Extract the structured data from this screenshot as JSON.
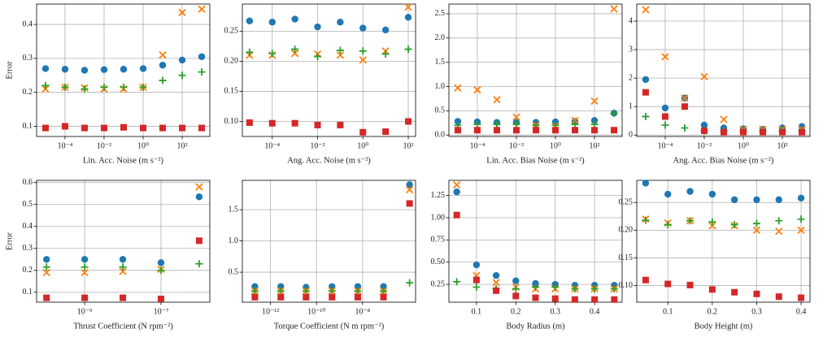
{
  "chart_data": [
    {
      "type": "scatter",
      "xlabel": "Lin. Acc. Noise (m s⁻²)",
      "ylabel": "Error",
      "log_x": true,
      "grid": true,
      "x": [
        1e-05,
        0.0001,
        0.001,
        0.01,
        0.1,
        1,
        10,
        100,
        1000
      ],
      "xlim": [
        3.5e-06,
        2600
      ],
      "ylim": [
        0.07,
        0.46
      ],
      "xticks": [
        {
          "value": 0.0001,
          "label": "10⁻⁴"
        },
        {
          "value": 0.01,
          "label": "10⁻²"
        },
        {
          "value": 1,
          "label": "10⁰"
        },
        {
          "value": 100,
          "label": "10²"
        }
      ],
      "yticks": [
        0.1,
        0.2,
        0.3,
        0.4
      ],
      "series": [
        {
          "color": "#1f77b4",
          "marker": "o",
          "values": [
            0.27,
            0.268,
            0.265,
            0.267,
            0.268,
            0.27,
            0.28,
            0.295,
            0.305
          ]
        },
        {
          "color": "#ff7f0e",
          "marker": "x",
          "values": [
            0.21,
            0.215,
            0.213,
            0.21,
            0.21,
            0.215,
            0.31,
            0.435,
            0.445
          ]
        },
        {
          "color": "#2ca02c",
          "marker": "+",
          "values": [
            0.22,
            0.215,
            0.21,
            0.215,
            0.215,
            0.215,
            0.235,
            0.25,
            0.26
          ]
        },
        {
          "color": "#d62728",
          "marker": "s",
          "values": [
            0.095,
            0.1,
            0.095,
            0.095,
            0.097,
            0.095,
            0.095,
            0.095,
            0.095
          ]
        }
      ]
    },
    {
      "type": "scatter",
      "xlabel": "Ang. Acc. Noise (m s⁻²)",
      "log_x": true,
      "grid": true,
      "x": [
        1e-05,
        0.0001,
        0.001,
        0.01,
        0.1,
        1,
        10,
        100
      ],
      "xlim": [
        4.8e-06,
        210
      ],
      "ylim": [
        0.075,
        0.295
      ],
      "xticks": [
        {
          "value": 0.0001,
          "label": "10⁻⁴"
        },
        {
          "value": 0.01,
          "label": "10⁻²"
        },
        {
          "value": 1,
          "label": "10⁰"
        },
        {
          "value": 100,
          "label": "10²"
        }
      ],
      "yticks": [
        {
          "value": 0.1,
          "label": "0.10"
        },
        {
          "value": 0.15,
          "label": "0.15"
        },
        {
          "value": 0.2,
          "label": "0.20"
        },
        {
          "value": 0.25,
          "label": "0.25"
        }
      ],
      "series": [
        {
          "color": "#1f77b4",
          "marker": "o",
          "values": [
            0.267,
            0.265,
            0.27,
            0.257,
            0.265,
            0.255,
            0.252,
            0.273
          ]
        },
        {
          "color": "#ff7f0e",
          "marker": "x",
          "values": [
            0.21,
            0.21,
            0.213,
            0.212,
            0.21,
            0.202,
            0.217,
            0.29
          ]
        },
        {
          "color": "#2ca02c",
          "marker": "+",
          "values": [
            0.215,
            0.213,
            0.22,
            0.208,
            0.218,
            0.217,
            0.212,
            0.22
          ]
        },
        {
          "color": "#d62728",
          "marker": "s",
          "values": [
            0.098,
            0.097,
            0.097,
            0.094,
            0.094,
            0.082,
            0.083,
            0.1
          ]
        }
      ]
    },
    {
      "type": "scatter",
      "xlabel": "Lin. Acc. Bias Noise (m s⁻²)",
      "log_x": true,
      "grid": true,
      "x": [
        1e-05,
        0.0001,
        0.001,
        0.01,
        0.1,
        1,
        10,
        100,
        1000
      ],
      "xlim": [
        3.5e-06,
        2600
      ],
      "ylim": [
        -0.03,
        2.7
      ],
      "xticks": [
        {
          "value": 0.0001,
          "label": "10⁻⁴"
        },
        {
          "value": 0.01,
          "label": "10⁻²"
        },
        {
          "value": 1,
          "label": "10⁰"
        },
        {
          "value": 100,
          "label": "10²"
        }
      ],
      "yticks": [
        {
          "value": 0,
          "label": "0.0"
        },
        0.5,
        {
          "value": 1,
          "label": "1.0"
        },
        1.5,
        {
          "value": 2,
          "label": "2.0"
        },
        2.5
      ],
      "series": [
        {
          "color": "#1f77b4",
          "marker": "o",
          "values": [
            0.28,
            0.27,
            0.26,
            0.26,
            0.26,
            0.27,
            0.28,
            0.3,
            0.45
          ]
        },
        {
          "color": "#ff7f0e",
          "marker": "x",
          "values": [
            0.97,
            0.93,
            0.73,
            0.37,
            0.2,
            0.18,
            0.3,
            0.7,
            2.6
          ]
        },
        {
          "color": "#2ca02c",
          "marker": "+",
          "values": [
            0.2,
            0.22,
            0.22,
            0.22,
            0.2,
            0.2,
            0.22,
            0.22,
            0.45
          ]
        },
        {
          "color": "#d62728",
          "marker": "s",
          "values": [
            0.1,
            0.1,
            0.1,
            0.1,
            0.1,
            0.1,
            0.1,
            0.1,
            0.1
          ]
        }
      ]
    },
    {
      "type": "scatter",
      "xlabel": "Ang. Acc. Bias Noise (m s⁻²)",
      "log_x": true,
      "grid": true,
      "x": [
        1e-05,
        0.0001,
        0.001,
        0.01,
        0.1,
        1,
        10,
        100,
        1000
      ],
      "xlim": [
        3.5e-06,
        2600
      ],
      "ylim": [
        -0.05,
        4.6
      ],
      "xticks": [
        {
          "value": 0.0001,
          "label": "10⁻⁴"
        },
        {
          "value": 0.01,
          "label": "10⁻²"
        },
        {
          "value": 1,
          "label": "10⁰"
        },
        {
          "value": 100,
          "label": "10²"
        }
      ],
      "yticks": [
        0,
        1,
        2,
        3,
        4
      ],
      "series": [
        {
          "color": "#1f77b4",
          "marker": "o",
          "values": [
            1.95,
            0.95,
            1.3,
            0.35,
            0.25,
            0.22,
            0.2,
            0.25,
            0.3
          ]
        },
        {
          "color": "#ff7f0e",
          "marker": "x",
          "values": [
            4.4,
            2.75,
            1.3,
            2.05,
            0.55,
            0.2,
            0.2,
            0.2,
            0.2
          ]
        },
        {
          "color": "#2ca02c",
          "marker": "+",
          "values": [
            0.65,
            0.35,
            0.25,
            0.15,
            0.15,
            0.15,
            0.15,
            0.15,
            0.15
          ]
        },
        {
          "color": "#d62728",
          "marker": "s",
          "values": [
            1.5,
            0.65,
            1.0,
            0.15,
            0.1,
            0.1,
            0.1,
            0.1,
            0.1
          ]
        }
      ]
    },
    {
      "type": "scatter",
      "xlabel": "Thrust Coefficient (N rpm⁻²)",
      "ylabel": "Error",
      "log_x": true,
      "grid": true,
      "x": [
        1e-10,
        1e-09,
        1e-08,
        1e-07,
        1e-06
      ],
      "xlim": [
        5.5e-11,
        1.9e-06
      ],
      "ylim": [
        0.055,
        0.61
      ],
      "xticks": [
        {
          "value": 1e-09,
          "label": "10⁻⁹"
        },
        {
          "value": 1e-07,
          "label": "10⁻⁷"
        }
      ],
      "yticks": [
        0.1,
        0.2,
        0.3,
        0.4,
        0.5,
        0.6
      ],
      "series": [
        {
          "color": "#1f77b4",
          "marker": "o",
          "values": [
            0.25,
            0.25,
            0.25,
            0.235,
            0.535
          ]
        },
        {
          "color": "#ff7f0e",
          "marker": "x",
          "values": [
            0.19,
            0.19,
            0.195,
            0.205,
            0.58
          ]
        },
        {
          "color": "#2ca02c",
          "marker": "+",
          "values": [
            0.215,
            0.215,
            0.215,
            0.2,
            0.23
          ]
        },
        {
          "color": "#d62728",
          "marker": "s",
          "values": [
            0.075,
            0.075,
            0.075,
            0.07,
            0.335
          ]
        }
      ]
    },
    {
      "type": "scatter",
      "xlabel": "Torque Coefficient (N m rpm⁻²)",
      "log_x": true,
      "grid": true,
      "x": [
        2.1e-13,
        2.8e-12,
        3.5e-11,
        4.7e-10,
        6.2e-09,
        8.1e-08,
        1.1e-06
      ],
      "xlim": [
        6e-14,
        2e-06
      ],
      "ylim": [
        0.02,
        1.97
      ],
      "xticks": [
        {
          "value": 1e-12,
          "label": "10⁻¹²"
        },
        {
          "value": 1e-10,
          "label": "10⁻¹⁰"
        },
        {
          "value": 1e-08,
          "label": "10⁻⁸"
        }
      ],
      "yticks": [
        0.5,
        {
          "value": 1,
          "label": "1.0"
        },
        1.5
      ],
      "series": [
        {
          "color": "#1f77b4",
          "marker": "o",
          "values": [
            0.27,
            0.27,
            0.26,
            0.27,
            0.27,
            0.27,
            1.9
          ]
        },
        {
          "color": "#ff7f0e",
          "marker": "x",
          "values": [
            0.2,
            0.2,
            0.2,
            0.2,
            0.2,
            0.2,
            1.82
          ]
        },
        {
          "color": "#2ca02c",
          "marker": "+",
          "values": [
            0.2,
            0.2,
            0.2,
            0.2,
            0.2,
            0.2,
            0.33
          ]
        },
        {
          "color": "#d62728",
          "marker": "s",
          "values": [
            0.1,
            0.1,
            0.1,
            0.1,
            0.1,
            0.1,
            1.6
          ]
        }
      ]
    },
    {
      "type": "scatter",
      "xlabel": "Body Radius (m)",
      "log_x": false,
      "grid": true,
      "x": [
        0.05,
        0.1,
        0.15,
        0.2,
        0.25,
        0.3,
        0.35,
        0.4,
        0.45
      ],
      "xlim": [
        0.03,
        0.47
      ],
      "ylim": [
        0.05,
        1.42
      ],
      "xticks": [
        0.1,
        0.2,
        0.3,
        0.4
      ],
      "yticks": [
        0.25,
        {
          "value": 0.5,
          "label": "0.50"
        },
        0.75,
        {
          "value": 1,
          "label": "1.00"
        },
        1.25
      ],
      "series": [
        {
          "color": "#1f77b4",
          "marker": "o",
          "values": [
            1.29,
            0.47,
            0.35,
            0.29,
            0.26,
            0.25,
            0.24,
            0.24,
            0.24
          ]
        },
        {
          "color": "#ff7f0e",
          "marker": "x",
          "values": [
            1.37,
            0.35,
            0.27,
            0.22,
            0.2,
            0.2,
            0.2,
            0.2,
            0.2
          ]
        },
        {
          "color": "#2ca02c",
          "marker": "+",
          "values": [
            0.28,
            0.22,
            0.2,
            0.2,
            0.22,
            0.22,
            0.2,
            0.2,
            0.2
          ]
        },
        {
          "color": "#d62728",
          "marker": "s",
          "values": [
            1.03,
            0.3,
            0.18,
            0.12,
            0.1,
            0.09,
            0.08,
            0.08,
            0.08
          ]
        }
      ]
    },
    {
      "type": "scatter",
      "xlabel": "Body Height (m)",
      "log_x": false,
      "grid": true,
      "x": [
        0.05,
        0.1,
        0.15,
        0.2,
        0.25,
        0.3,
        0.35,
        0.4
      ],
      "xlim": [
        0.03,
        0.42
      ],
      "ylim": [
        0.07,
        0.29
      ],
      "xticks": [
        0.1,
        0.2,
        0.3,
        0.4
      ],
      "yticks": [
        {
          "value": 0.1,
          "label": "0.10"
        },
        0.15,
        {
          "value": 0.2,
          "label": "0.20"
        },
        0.25
      ],
      "series": [
        {
          "color": "#1f77b4",
          "marker": "o",
          "values": [
            0.285,
            0.265,
            0.27,
            0.265,
            0.255,
            0.255,
            0.255,
            0.258
          ]
        },
        {
          "color": "#ff7f0e",
          "marker": "x",
          "values": [
            0.22,
            0.213,
            0.217,
            0.208,
            0.208,
            0.2,
            0.198,
            0.2
          ]
        },
        {
          "color": "#2ca02c",
          "marker": "+",
          "values": [
            0.218,
            0.21,
            0.217,
            0.215,
            0.21,
            0.212,
            0.217,
            0.22
          ]
        },
        {
          "color": "#d62728",
          "marker": "s",
          "values": [
            0.11,
            0.103,
            0.101,
            0.093,
            0.088,
            0.085,
            0.08,
            0.078
          ]
        }
      ]
    }
  ]
}
